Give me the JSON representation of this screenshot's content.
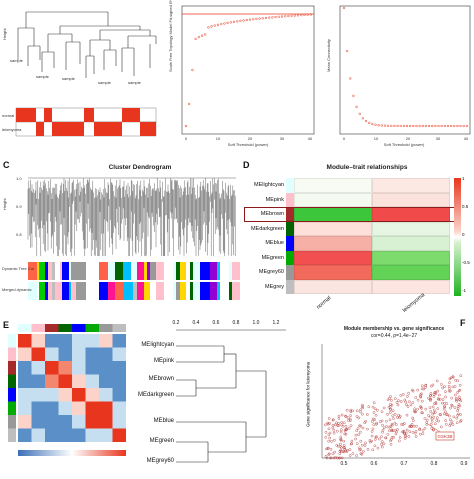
{
  "panelC": {
    "letter": "C",
    "title": "Cluster Dendrogram",
    "ylabel": "Height",
    "row1": "Dynamic Tree Cut",
    "row2": "Merged dynamic"
  },
  "panelD": {
    "letter": "D",
    "title": "Module–trait relationships",
    "columns": [
      "normal",
      "leiomyoma"
    ],
    "rows": [
      {
        "name": "MElightcyan",
        "color": "#e0ffff",
        "cells": [
          "#f7fbf3",
          "#fde9e4"
        ]
      },
      {
        "name": "MEpink",
        "color": "#ffc0cb",
        "cells": [
          "#f4faf0",
          "#fbe2dc"
        ]
      },
      {
        "name": "MEbrown",
        "color": "#a52a2a",
        "cells": [
          "#3cc63c",
          "#f04a4a"
        ]
      },
      {
        "name": "MEdarkgreen",
        "color": "#006400",
        "cells": [
          "#fde0da",
          "#e7f6e2"
        ]
      },
      {
        "name": "MEblue",
        "color": "#0000ff",
        "cells": [
          "#f7b0a6",
          "#d8f1d2"
        ]
      },
      {
        "name": "MEgreen",
        "color": "#00aa00",
        "cells": [
          "#f25050",
          "#7ddb6e"
        ]
      },
      {
        "name": "MEgrey60",
        "color": "#999999",
        "cells": [
          "#f26a5c",
          "#62d356"
        ]
      },
      {
        "name": "MEgrey",
        "color": "#bebebe",
        "cells": [
          "#fbe5e0",
          "#fde6e1"
        ]
      }
    ],
    "scale_ticks": [
      "1",
      "0.5",
      "0",
      "-0.5",
      "-1"
    ]
  },
  "panelE": {
    "letter": "E",
    "axis_ticks": [
      "0.2",
      "0.4",
      "0.6",
      "0.8",
      "1.0",
      "1.2"
    ],
    "leaves": [
      "MElightcyan",
      "MEpink",
      "MEbrown",
      "MEdarkgreen",
      "MEblue",
      "MEgreen",
      "MEgrey60"
    ]
  },
  "panelF": {
    "letter": "F",
    "title": "Module membership vs. gene significance",
    "subtitle": "cor=0.44, p=1.4e−27",
    "ylabel": "Gene significance for leiomyoma",
    "xticks": [
      "0.5",
      "0.6",
      "0.7",
      "0.8",
      "0.9"
    ],
    "annotation": "GSK3B"
  },
  "colors": {
    "red": "#e8361e",
    "green": "#1fb31f",
    "point": "#b03030",
    "highlight": "#c0392b"
  }
}
